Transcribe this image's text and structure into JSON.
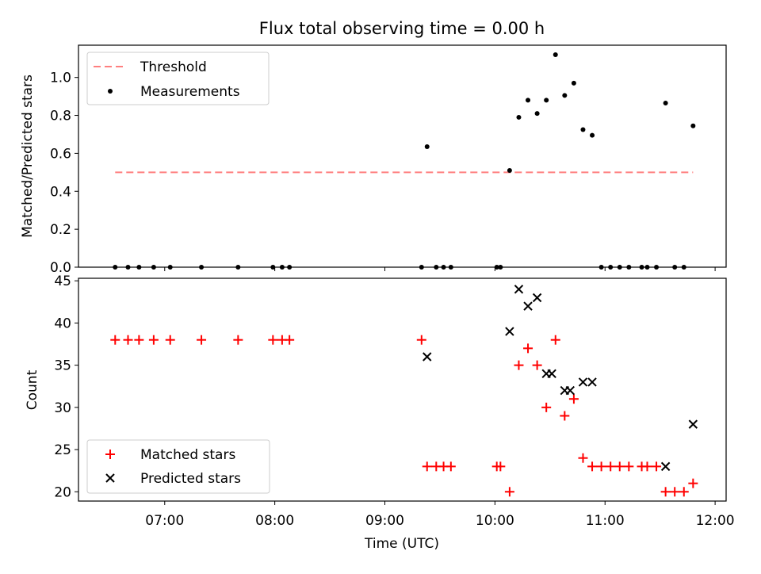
{
  "title": "Flux total observing time = 0.00 h",
  "chart_data": [
    {
      "type": "scatter",
      "panel": "top",
      "ylabel": "Matched/Predicted stars",
      "ylim": [
        0,
        1.17
      ],
      "yticks": [
        "0.0",
        "0.2",
        "0.4",
        "0.6",
        "0.8",
        "1.0"
      ],
      "ytick_values": [
        0,
        0.2,
        0.4,
        0.6,
        0.8,
        1.0
      ],
      "legend": {
        "position": "top-left",
        "entries": [
          "Threshold",
          "Measurements"
        ]
      },
      "threshold": {
        "name": "Threshold",
        "value": 0.5,
        "x_start": "06:33",
        "x_end": "11:48",
        "color": "#ff7f7f",
        "style": "dashed"
      },
      "series": [
        {
          "name": "Measurements",
          "color": "#000000",
          "marker": "dot",
          "points": [
            [
              "06:33",
              0.0
            ],
            [
              "06:40",
              0.0
            ],
            [
              "06:46",
              0.0
            ],
            [
              "06:54",
              0.0
            ],
            [
              "07:03",
              0.0
            ],
            [
              "07:20",
              0.0
            ],
            [
              "07:40",
              0.0
            ],
            [
              "07:59",
              0.0
            ],
            [
              "08:04",
              0.0
            ],
            [
              "08:08",
              0.0
            ],
            [
              "09:20",
              0.0
            ],
            [
              "09:23",
              0.635
            ],
            [
              "09:28",
              0.0
            ],
            [
              "09:32",
              0.0
            ],
            [
              "09:36",
              0.0
            ],
            [
              "10:01",
              0.0
            ],
            [
              "10:03",
              0.0
            ],
            [
              "10:08",
              0.51
            ],
            [
              "10:13",
              0.79
            ],
            [
              "10:18",
              0.88
            ],
            [
              "10:23",
              0.81
            ],
            [
              "10:28",
              0.88
            ],
            [
              "10:33",
              1.12
            ],
            [
              "10:38",
              0.905
            ],
            [
              "10:43",
              0.97
            ],
            [
              "10:48",
              0.725
            ],
            [
              "10:53",
              0.695
            ],
            [
              "10:58",
              0.0
            ],
            [
              "11:03",
              0.0
            ],
            [
              "11:08",
              0.0
            ],
            [
              "11:13",
              0.0
            ],
            [
              "11:20",
              0.0
            ],
            [
              "11:23",
              0.0
            ],
            [
              "11:28",
              0.0
            ],
            [
              "11:33",
              0.865
            ],
            [
              "11:38",
              0.0
            ],
            [
              "11:43",
              0.0
            ],
            [
              "11:48",
              0.745
            ]
          ]
        }
      ]
    },
    {
      "type": "scatter",
      "panel": "bottom",
      "xlabel": "Time (UTC)",
      "ylabel": "Count",
      "xlim": [
        "06:13",
        "12:06"
      ],
      "ylim": [
        18.9,
        45.3
      ],
      "xticks": [
        "07:00",
        "08:00",
        "09:00",
        "10:00",
        "11:00",
        "12:00"
      ],
      "yticks": [
        "20",
        "25",
        "30",
        "35",
        "40",
        "45"
      ],
      "ytick_values": [
        20,
        25,
        30,
        35,
        40,
        45
      ],
      "legend": {
        "position": "bottom-left",
        "entries": [
          "Matched stars",
          "Predicted stars"
        ]
      },
      "series": [
        {
          "name": "Matched stars",
          "color": "#ff0000",
          "marker": "plus",
          "points": [
            [
              "06:33",
              38
            ],
            [
              "06:40",
              38
            ],
            [
              "06:46",
              38
            ],
            [
              "06:54",
              38
            ],
            [
              "07:03",
              38
            ],
            [
              "07:20",
              38
            ],
            [
              "07:40",
              38
            ],
            [
              "07:59",
              38
            ],
            [
              "08:04",
              38
            ],
            [
              "08:08",
              38
            ],
            [
              "09:20",
              38
            ],
            [
              "09:23",
              23
            ],
            [
              "09:28",
              23
            ],
            [
              "09:32",
              23
            ],
            [
              "09:36",
              23
            ],
            [
              "10:01",
              23
            ],
            [
              "10:03",
              23
            ],
            [
              "10:08",
              20
            ],
            [
              "10:13",
              35
            ],
            [
              "10:18",
              37
            ],
            [
              "10:23",
              35
            ],
            [
              "10:28",
              30
            ],
            [
              "10:33",
              38
            ],
            [
              "10:38",
              29
            ],
            [
              "10:43",
              31
            ],
            [
              "10:48",
              24
            ],
            [
              "10:53",
              23
            ],
            [
              "10:58",
              23
            ],
            [
              "11:03",
              23
            ],
            [
              "11:08",
              23
            ],
            [
              "11:13",
              23
            ],
            [
              "11:20",
              23
            ],
            [
              "11:23",
              23
            ],
            [
              "11:28",
              23
            ],
            [
              "11:33",
              20
            ],
            [
              "11:38",
              20
            ],
            [
              "11:43",
              20
            ],
            [
              "11:48",
              21
            ]
          ]
        },
        {
          "name": "Predicted stars",
          "color": "#000000",
          "marker": "x",
          "points": [
            [
              "09:23",
              36
            ],
            [
              "10:08",
              39
            ],
            [
              "10:13",
              44
            ],
            [
              "10:18",
              42
            ],
            [
              "10:23",
              43
            ],
            [
              "10:28",
              34
            ],
            [
              "10:31",
              34
            ],
            [
              "10:38",
              32
            ],
            [
              "10:41",
              32
            ],
            [
              "10:48",
              33
            ],
            [
              "10:53",
              33
            ],
            [
              "11:33",
              23
            ],
            [
              "11:48",
              28
            ]
          ]
        }
      ]
    }
  ]
}
